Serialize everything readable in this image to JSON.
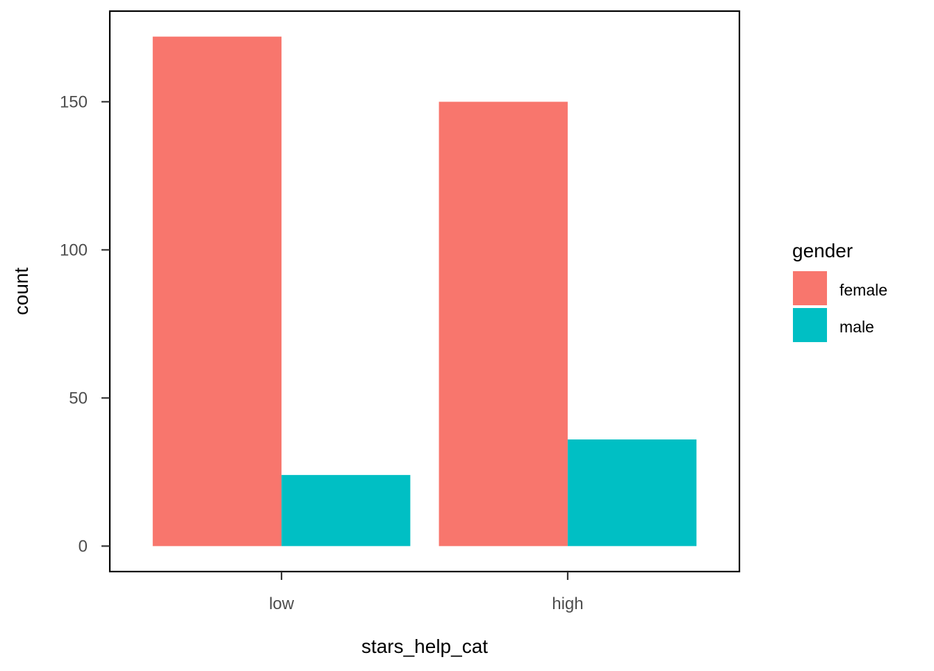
{
  "chart_data": {
    "type": "bar",
    "categories": [
      "low",
      "high"
    ],
    "series": [
      {
        "name": "female",
        "values": [
          172,
          150
        ],
        "color": "#F8766D"
      },
      {
        "name": "male",
        "values": [
          24,
          36
        ],
        "color": "#00BFC4"
      }
    ],
    "xlabel": "stars_help_cat",
    "ylabel": "count",
    "ylim": [
      -8.6,
      180.6
    ],
    "yticks": [
      0,
      50,
      100,
      150
    ],
    "legend": {
      "title": "gender",
      "position": "right"
    },
    "grid": false,
    "panel_border": true
  }
}
